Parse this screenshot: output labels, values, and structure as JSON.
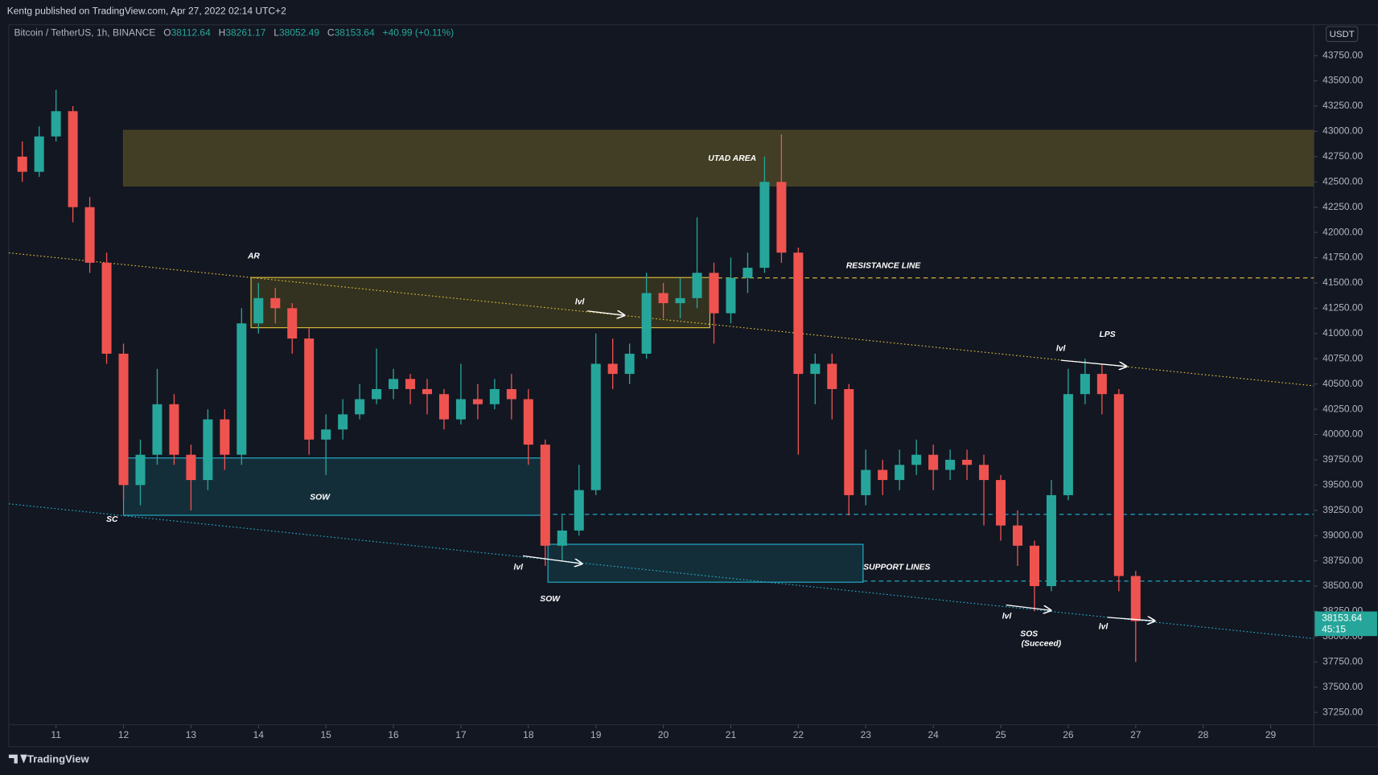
{
  "header": {
    "publisher": "Kentg published on TradingView.com, Apr 27, 2022 02:14 UTC+2",
    "symbol": "Bitcoin / TetherUS, 1h, BINANCE",
    "ohlc": [
      {
        "key": "O",
        "value": "38112.64"
      },
      {
        "key": "H",
        "value": "38261.17"
      },
      {
        "key": "L",
        "value": "38052.49"
      },
      {
        "key": "C",
        "value": "38153.64"
      }
    ],
    "change": "+40.99 (+0.11%)",
    "brand": "TradingView"
  },
  "chart_data": {
    "type": "candlestick",
    "currency": "USDT",
    "countdown": "45:15",
    "up_color": "#26a69a",
    "down_color": "#ef5350",
    "x": [
      10.5,
      10.75,
      11,
      11.25,
      11.5,
      11.75,
      12,
      12.25,
      12.5,
      12.75,
      13,
      13.25,
      13.5,
      13.75,
      14,
      14.25,
      14.5,
      14.75,
      15,
      15.25,
      15.5,
      15.75,
      16,
      16.25,
      16.5,
      16.75,
      17,
      17.25,
      17.5,
      17.75,
      18,
      18.25,
      18.5,
      18.75,
      19,
      19.25,
      19.5,
      19.75,
      20,
      20.25,
      20.5,
      20.75,
      21,
      21.25,
      21.5,
      21.75,
      22,
      22.25,
      22.5,
      22.75,
      23,
      23.25,
      23.5,
      23.75,
      24,
      24.25,
      24.5,
      24.75,
      25,
      25.25,
      25.5,
      25.75,
      26,
      26.25,
      26.5,
      26.75,
      27
    ],
    "open": [
      42750,
      42600,
      42950,
      43200,
      42250,
      41700,
      40800,
      39500,
      39800,
      40300,
      39800,
      39550,
      40150,
      39800,
      41100,
      41350,
      41250,
      40950,
      39950,
      40050,
      40200,
      40350,
      40450,
      40550,
      40450,
      40400,
      40150,
      40350,
      40300,
      40450,
      40350,
      39900,
      38900,
      39050,
      39450,
      40700,
      40600,
      40800,
      41400,
      41300,
      41350,
      41600,
      41200,
      41550,
      41650,
      42500,
      41800,
      40600,
      40700,
      40450,
      39400,
      39650,
      39550,
      39700,
      39800,
      39650,
      39750,
      39700,
      39550,
      39100,
      38900,
      38500,
      39400,
      40400,
      40600,
      40400,
      38600
    ],
    "high": [
      42900,
      43050,
      43410,
      43250,
      42350,
      41800,
      40900,
      39950,
      40650,
      40400,
      39900,
      40250,
      40250,
      41250,
      41500,
      41450,
      41300,
      41050,
      40200,
      40350,
      40500,
      40850,
      40650,
      40600,
      40550,
      40450,
      40700,
      40500,
      40550,
      40600,
      40450,
      39950,
      39200,
      39700,
      41000,
      40950,
      40900,
      41600,
      41500,
      41550,
      42150,
      41700,
      41750,
      41800,
      42750,
      42970,
      41850,
      40800,
      40800,
      40500,
      39850,
      39750,
      39850,
      39950,
      39900,
      39850,
      39850,
      39800,
      39600,
      39250,
      38950,
      39550,
      40650,
      40750,
      40700,
      40450,
      38650
    ],
    "low": [
      42500,
      42550,
      42900,
      42100,
      41600,
      40700,
      39350,
      39300,
      39700,
      39700,
      39250,
      39450,
      39650,
      39700,
      41000,
      41100,
      40800,
      39800,
      39600,
      39950,
      40150,
      40300,
      40350,
      40300,
      40200,
      40050,
      40100,
      40150,
      40250,
      40150,
      39700,
      38700,
      38750,
      39000,
      39400,
      40450,
      40500,
      40750,
      41150,
      41150,
      41250,
      40900,
      41100,
      41400,
      41600,
      41700,
      39800,
      40300,
      40150,
      39200,
      39300,
      39400,
      39450,
      39600,
      39450,
      39550,
      39550,
      39100,
      38950,
      38700,
      38250,
      38450,
      39350,
      40300,
      40200,
      38450,
      37750
    ],
    "close": [
      42600,
      42950,
      43200,
      42250,
      41700,
      40800,
      39500,
      39800,
      40300,
      39800,
      39550,
      40150,
      39800,
      41100,
      41350,
      41250,
      40950,
      39950,
      40050,
      40200,
      40350,
      40450,
      40550,
      40450,
      40400,
      40150,
      40350,
      40300,
      40450,
      40350,
      39900,
      38900,
      39050,
      39450,
      40700,
      40600,
      40800,
      41400,
      41300,
      41350,
      41600,
      41200,
      41550,
      41650,
      42500,
      41800,
      40600,
      40700,
      40450,
      39400,
      39650,
      39550,
      39700,
      39800,
      39650,
      39750,
      39700,
      39550,
      39100,
      38900,
      38500,
      39400,
      40400,
      40600,
      40400,
      38600,
      38153.64
    ],
    "xlim": [
      10.3,
      29.64
    ],
    "xticks": [
      11,
      12,
      13,
      14,
      15,
      16,
      17,
      18,
      19,
      20,
      21,
      22,
      23,
      24,
      25,
      26,
      27,
      28,
      29
    ],
    "ylim": [
      37128,
      44055
    ],
    "yticks": [
      {
        "value": 37250,
        "label": "37250.00"
      },
      {
        "value": 37500,
        "label": "37500.00"
      },
      {
        "value": 37750,
        "label": "37750.00"
      },
      {
        "value": 38000,
        "label": "38000.00"
      },
      {
        "value": 38250,
        "label": "38250.00"
      },
      {
        "value": 38500,
        "label": "38500.00"
      },
      {
        "value": 38750,
        "label": "38750.00"
      },
      {
        "value": 39000,
        "label": "39000.00"
      },
      {
        "value": 39250,
        "label": "39250.00"
      },
      {
        "value": 39500,
        "label": "39500.00"
      },
      {
        "value": 39750,
        "label": "39750.00"
      },
      {
        "value": 40000,
        "label": "40000.00"
      },
      {
        "value": 40250,
        "label": "40250.00"
      },
      {
        "value": 40500,
        "label": "40500.00"
      },
      {
        "value": 40750,
        "label": "40750.00"
      },
      {
        "value": 41000,
        "label": "41000.00"
      },
      {
        "value": 41250,
        "label": "41250.00"
      },
      {
        "value": 41500,
        "label": "41500.00"
      },
      {
        "value": 41750,
        "label": "41750.00"
      },
      {
        "value": 42000,
        "label": "42000.00"
      },
      {
        "value": 42250,
        "label": "42250.00"
      },
      {
        "value": 42500,
        "label": "42500.00"
      },
      {
        "value": 42750,
        "label": "42750.00"
      },
      {
        "value": 43000,
        "label": "43000.00"
      },
      {
        "value": 43250,
        "label": "43250.00"
      },
      {
        "value": 43500,
        "label": "43500.00"
      },
      {
        "value": 43750,
        "label": "43750.00"
      }
    ],
    "zones": [
      {
        "x": [
          12.0,
          29.64
        ],
        "y": [
          42460,
          43010
        ],
        "color": "#4a4526",
        "border": "#4a4526"
      },
      {
        "x": [
          13.89,
          20.69
        ],
        "y": [
          41057,
          41554
        ],
        "color": "#3a3720",
        "border": "#e8c53a"
      },
      {
        "x": [
          12.0,
          18.25
        ],
        "y": [
          39201,
          39768
        ],
        "color": "#15323d",
        "border": "#22b8d4"
      },
      {
        "x": [
          18.29,
          22.96
        ],
        "y": [
          38539,
          38914
        ],
        "color": "#15323d",
        "border": "#22b8d4"
      }
    ],
    "lines": [
      {
        "x": [
          20.69,
          29.64
        ],
        "y": [
          41550,
          41550
        ],
        "color": "#e8c53a",
        "style": "dashed"
      },
      {
        "x": [
          18.25,
          29.64
        ],
        "y": [
          39210,
          39210
        ],
        "color": "#22b8d4",
        "style": "dashed"
      },
      {
        "x": [
          22.96,
          29.64
        ],
        "y": [
          38550,
          38550
        ],
        "color": "#22b8d4",
        "style": "dashed"
      },
      {
        "x": [
          10.3,
          29.64
        ],
        "y": [
          41798,
          40482
        ],
        "color": "#e8c53a",
        "style": "dotted"
      },
      {
        "x": [
          10.3,
          29.64
        ],
        "y": [
          39314,
          37981
        ],
        "color": "#22b8d4",
        "style": "dotted"
      }
    ],
    "arrows": [
      {
        "x": [
          18.87,
          19.42
        ],
        "y": [
          41223,
          41180
        ]
      },
      {
        "x": [
          17.92,
          18.79
        ],
        "y": [
          38800,
          38722
        ]
      },
      {
        "x": [
          25.08,
          25.74
        ],
        "y": [
          38313,
          38260
        ]
      },
      {
        "x": [
          25.89,
          26.86
        ],
        "y": [
          40735,
          40674
        ]
      },
      {
        "x": [
          26.58,
          27.28
        ],
        "y": [
          38191,
          38156
        ]
      }
    ],
    "labels": [
      {
        "text": "UTAD AREA",
        "x": 21.02,
        "y": 42730
      },
      {
        "text": "AR",
        "x": 13.93,
        "y": 41763
      },
      {
        "text": "RESISTANCE LINE",
        "x": 23.26,
        "y": 41667
      },
      {
        "text": "SOW",
        "x": 14.91,
        "y": 39376
      },
      {
        "text": "SC",
        "x": 11.83,
        "y": 39158
      },
      {
        "text": "SOW",
        "x": 18.32,
        "y": 38373
      },
      {
        "text": "SUPPORT LINES",
        "x": 23.46,
        "y": 38687
      },
      {
        "text": "LPS",
        "x": 26.58,
        "y": 40988
      },
      {
        "text": "SOS",
        "x": 25.42,
        "y": 38025
      },
      {
        "text": "(Succeed)",
        "x": 25.6,
        "y": 37929
      },
      {
        "text": "lvl",
        "x": 18.76,
        "y": 41310
      },
      {
        "text": "lvl",
        "x": 17.85,
        "y": 38687
      },
      {
        "text": "lvl",
        "x": 25.09,
        "y": 38199
      },
      {
        "text": "lvl",
        "x": 25.89,
        "y": 40848
      },
      {
        "text": "lvl",
        "x": 26.52,
        "y": 38095
      }
    ]
  }
}
